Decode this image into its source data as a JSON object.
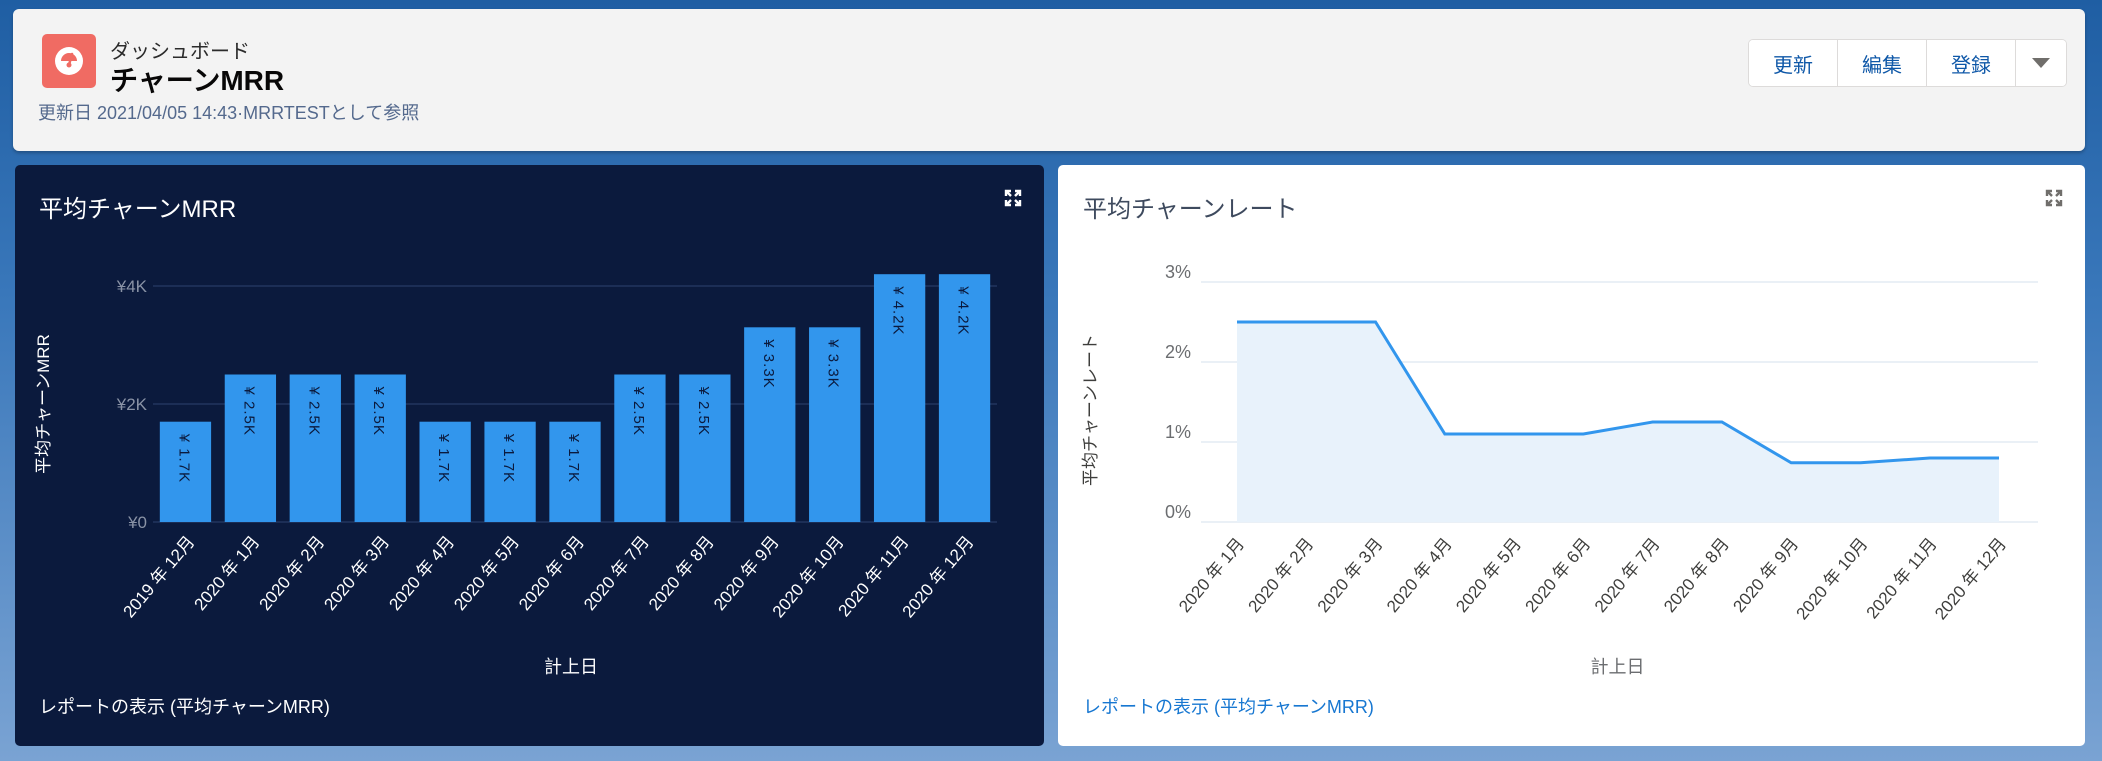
{
  "header": {
    "object_type": "ダッシュボード",
    "title": "チャーンMRR",
    "meta": "更新日 2021/04/05 14:43·MRRTESTとして参照",
    "icon": "dashboard-gauge-icon",
    "icon_color": "#f06b63",
    "buttons": [
      {
        "label": "更新"
      },
      {
        "label": "編集"
      },
      {
        "label": "登録"
      }
    ],
    "more_icon": "caret-down-icon"
  },
  "panels": {
    "left": {
      "title": "平均チャーンMRR",
      "report_link": "レポートの表示 (平均チャーンMRR)",
      "expand_icon": "expand-icon"
    },
    "right": {
      "title": "平均チャーンレート",
      "report_link": "レポートの表示 (平均チャーンMRR)",
      "expand_icon": "expand-icon"
    }
  },
  "chart_data": [
    {
      "type": "bar",
      "title": "平均チャーンMRR",
      "xlabel": "計上日",
      "ylabel": "平均チャーンMRR",
      "categories": [
        "2019 年 12月",
        "2020 年 1月",
        "2020 年 2月",
        "2020 年 3月",
        "2020 年 4月",
        "2020 年 5月",
        "2020 年 6月",
        "2020 年 7月",
        "2020 年 8月",
        "2020 年 9月",
        "2020 年 10月",
        "2020 年 11月",
        "2020 年 12月"
      ],
      "values": [
        1700,
        2500,
        2500,
        2500,
        1700,
        1700,
        1700,
        2500,
        2500,
        3300,
        3300,
        4200,
        4200
      ],
      "data_labels": [
        "¥ 1.7K",
        "¥ 2.5K",
        "¥ 2.5K",
        "¥ 2.5K",
        "¥ 1.7K",
        "¥ 1.7K",
        "¥ 1.7K",
        "¥ 2.5K",
        "¥ 2.5K",
        "¥ 3.3K",
        "¥ 3.3K",
        "¥ 4.2K",
        "¥ 4.2K"
      ],
      "yticks": [
        "¥0",
        "¥2K",
        "¥4K"
      ],
      "ytick_values": [
        0,
        2000,
        4000
      ],
      "ylim": [
        0,
        4000
      ],
      "grid": true,
      "bar_color": "#3296ed",
      "background": "#0b1a3d"
    },
    {
      "type": "area",
      "title": "平均チャーンレート",
      "xlabel": "計上日",
      "ylabel": "平均チャーンレート",
      "categories": [
        "2020 年 1月",
        "2020 年 2月",
        "2020 年 3月",
        "2020 年 4月",
        "2020 年 5月",
        "2020 年 6月",
        "2020 年 7月",
        "2020 年 8月",
        "2020 年 9月",
        "2020 年 10月",
        "2020 年 11月",
        "2020 年 12月"
      ],
      "values": [
        2.5,
        2.5,
        2.5,
        1.1,
        1.1,
        1.1,
        1.25,
        1.25,
        0.74,
        0.74,
        0.8,
        0.8
      ],
      "yticks": [
        "0%",
        "1%",
        "2%",
        "3%"
      ],
      "ytick_values": [
        0,
        1,
        2,
        3
      ],
      "ylim": [
        0,
        3
      ],
      "grid": true,
      "line_color": "#3296ed",
      "fill_color": "#e8f2fb"
    }
  ]
}
